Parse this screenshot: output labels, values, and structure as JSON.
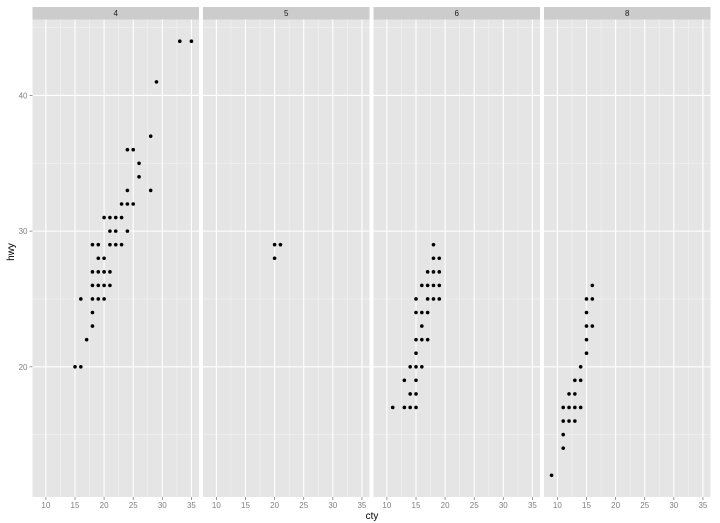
{
  "chart_data": {
    "type": "scatter",
    "title": "",
    "xlabel": "cty",
    "ylabel": "hwy",
    "facet_variable": "cyl",
    "facets": [
      {
        "label": "4",
        "points": [
          [
            15,
            20
          ],
          [
            16,
            20
          ],
          [
            17,
            22
          ],
          [
            18,
            23
          ],
          [
            18,
            24
          ],
          [
            16,
            25
          ],
          [
            18,
            25
          ],
          [
            19,
            25
          ],
          [
            20,
            25
          ],
          [
            18,
            26
          ],
          [
            19,
            26
          ],
          [
            20,
            26
          ],
          [
            21,
            26
          ],
          [
            18,
            27
          ],
          [
            19,
            27
          ],
          [
            20,
            27
          ],
          [
            21,
            27
          ],
          [
            19,
            28
          ],
          [
            20,
            28
          ],
          [
            18,
            29
          ],
          [
            19,
            29
          ],
          [
            21,
            29
          ],
          [
            22,
            29
          ],
          [
            23,
            29
          ],
          [
            21,
            30
          ],
          [
            22,
            30
          ],
          [
            24,
            30
          ],
          [
            20,
            31
          ],
          [
            21,
            31
          ],
          [
            22,
            31
          ],
          [
            23,
            31
          ],
          [
            23,
            32
          ],
          [
            24,
            32
          ],
          [
            25,
            32
          ],
          [
            24,
            33
          ],
          [
            28,
            33
          ],
          [
            26,
            34
          ],
          [
            26,
            35
          ],
          [
            24,
            36
          ],
          [
            25,
            36
          ],
          [
            28,
            37
          ],
          [
            29,
            41
          ],
          [
            33,
            44
          ],
          [
            35,
            44
          ]
        ]
      },
      {
        "label": "5",
        "points": [
          [
            20,
            28
          ],
          [
            20,
            29
          ],
          [
            21,
            29
          ]
        ]
      },
      {
        "label": "6",
        "points": [
          [
            11,
            17
          ],
          [
            13,
            17
          ],
          [
            14,
            17
          ],
          [
            15,
            17
          ],
          [
            14,
            18
          ],
          [
            15,
            18
          ],
          [
            13,
            19
          ],
          [
            15,
            19
          ],
          [
            14,
            20
          ],
          [
            15,
            20
          ],
          [
            16,
            20
          ],
          [
            15,
            21
          ],
          [
            15,
            22
          ],
          [
            16,
            22
          ],
          [
            17,
            22
          ],
          [
            16,
            23
          ],
          [
            15,
            24
          ],
          [
            16,
            24
          ],
          [
            17,
            24
          ],
          [
            15,
            25
          ],
          [
            17,
            25
          ],
          [
            18,
            25
          ],
          [
            19,
            25
          ],
          [
            16,
            26
          ],
          [
            17,
            26
          ],
          [
            18,
            26
          ],
          [
            19,
            26
          ],
          [
            17,
            27
          ],
          [
            18,
            27
          ],
          [
            19,
            27
          ],
          [
            18,
            28
          ],
          [
            19,
            28
          ],
          [
            18,
            29
          ]
        ]
      },
      {
        "label": "8",
        "points": [
          [
            9,
            12
          ],
          [
            11,
            14
          ],
          [
            11,
            15
          ],
          [
            11,
            16
          ],
          [
            12,
            16
          ],
          [
            13,
            16
          ],
          [
            11,
            17
          ],
          [
            12,
            17
          ],
          [
            13,
            17
          ],
          [
            14,
            17
          ],
          [
            12,
            18
          ],
          [
            13,
            18
          ],
          [
            13,
            19
          ],
          [
            14,
            19
          ],
          [
            14,
            20
          ],
          [
            15,
            21
          ],
          [
            15,
            22
          ],
          [
            15,
            23
          ],
          [
            16,
            23
          ],
          [
            15,
            24
          ],
          [
            15,
            25
          ],
          [
            16,
            25
          ],
          [
            16,
            26
          ]
        ]
      }
    ],
    "x_ticks": [
      10,
      15,
      20,
      25,
      30,
      35
    ],
    "y_ticks": [
      20,
      30,
      40
    ],
    "xlim": [
      7.7,
      36.3
    ],
    "ylim": [
      10.4,
      45.6
    ],
    "grid": true,
    "legend": "none",
    "colors": {
      "panel_bg": "#e5e5e5",
      "strip_bg": "#cccccc",
      "grid_major": "#ffffff",
      "grid_minor": "#f2f2f2",
      "point": "#000000",
      "tick_text": "#7f7f7f"
    }
  }
}
